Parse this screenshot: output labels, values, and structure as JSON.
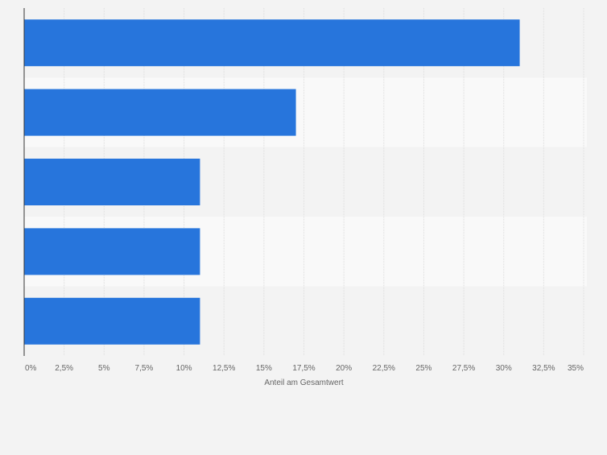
{
  "chart_data": {
    "type": "bar",
    "orientation": "horizontal",
    "categories": [
      "",
      "",
      "",
      "",
      ""
    ],
    "values": [
      31,
      17,
      11,
      11,
      11
    ],
    "xlabel": "Anteil am Gesamtwert",
    "ylabel": "",
    "xlim": [
      0,
      35
    ],
    "ticks": [
      0,
      2.5,
      5,
      7.5,
      10,
      12.5,
      15,
      17.5,
      20,
      22.5,
      25,
      27.5,
      30,
      32.5,
      35
    ],
    "tick_labels": [
      "0%",
      "2,5%",
      "5%",
      "7,5%",
      "10%",
      "12,5%",
      "15%",
      "17,5%",
      "20%",
      "22,5%",
      "25%",
      "27,5%",
      "30%",
      "32,5%",
      "35%"
    ],
    "grid": true,
    "legend": "none",
    "bar_color": "#2775dc",
    "band_colors": [
      "#f3f3f3",
      "#f9f9f9"
    ],
    "gridline_color": "#dddddd",
    "axis_color": "#333333",
    "tick_label_color": "#666666"
  }
}
